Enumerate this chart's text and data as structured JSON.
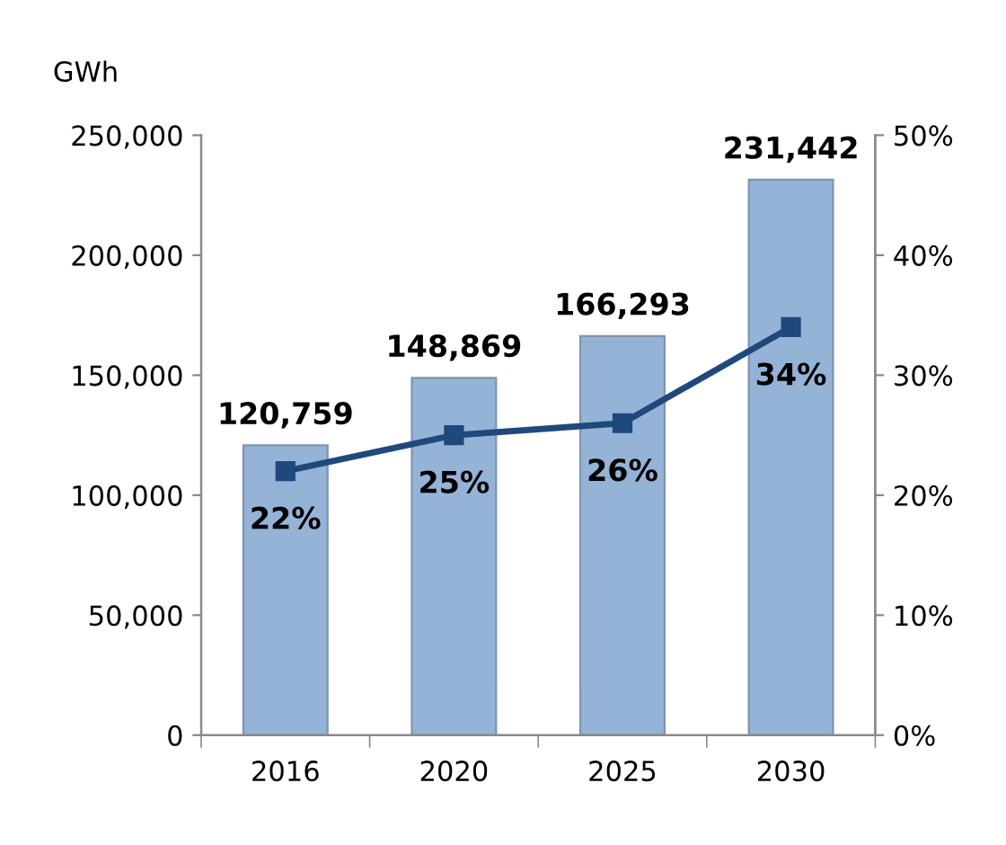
{
  "chart_data": {
    "type": "bar",
    "ylabel": "GWh",
    "categories": [
      "2016",
      "2020",
      "2025",
      "2030"
    ],
    "series": [
      {
        "color": "#95b3d7",
        "values": [
          120759,
          148869,
          166293,
          231442
        ],
        "value_labels": [
          "120,759",
          "148,869",
          "166,293",
          "231,442"
        ]
      },
      {
        "type": "line",
        "axis": "y2",
        "color": "#1f497d",
        "marker": "square",
        "values": [
          22,
          25,
          26,
          34
        ],
        "value_labels": [
          "22%",
          "25%",
          "26%",
          "34%"
        ]
      }
    ],
    "ylim": [
      0,
      250000
    ],
    "yticks": [
      {
        "value": 0,
        "label": "0"
      },
      {
        "value": 50000,
        "label": "50,000"
      },
      {
        "value": 100000,
        "label": "100,000"
      },
      {
        "value": 150000,
        "label": "150,000"
      },
      {
        "value": 200000,
        "label": "200,000"
      },
      {
        "value": 250000,
        "label": "250,000"
      }
    ],
    "y2lim": [
      0,
      50
    ],
    "y2ticks": [
      {
        "value": 0,
        "label": "0%"
      },
      {
        "value": 10,
        "label": "10%"
      },
      {
        "value": 20,
        "label": "20%"
      },
      {
        "value": 30,
        "label": "30%"
      },
      {
        "value": 40,
        "label": "40%"
      },
      {
        "value": 50,
        "label": "50%"
      }
    ],
    "grid": false,
    "legend": false
  }
}
